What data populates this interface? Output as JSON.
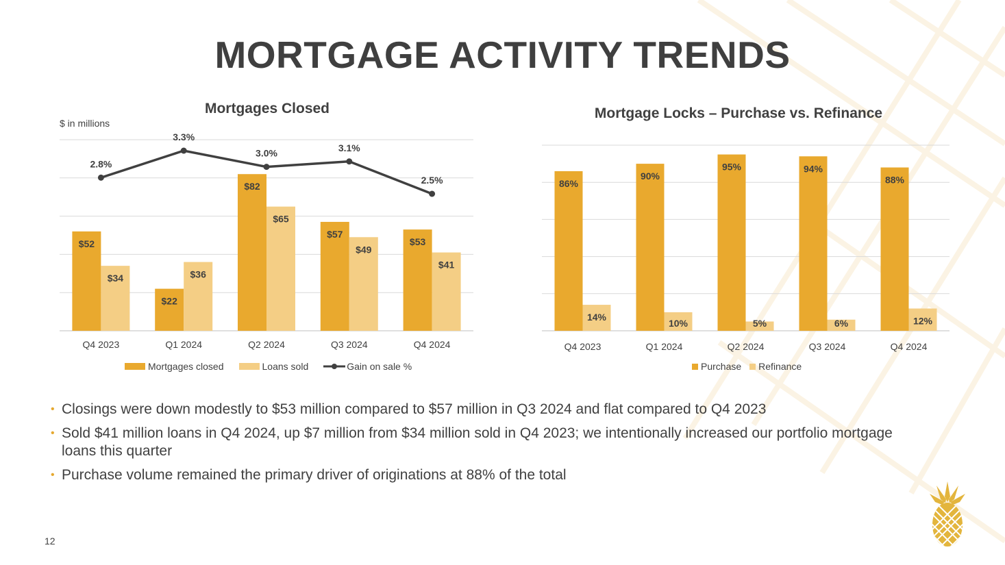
{
  "page": {
    "title": "MORTGAGE ACTIVITY TRENDS",
    "page_number": "12",
    "accent_color": "#E9A92E",
    "light_color": "#F4CE85",
    "line_color": "#404040",
    "bullets": [
      "Closings were down modestly to $53 million compared to $57 million in Q3 2024 and flat compared to Q4 2023",
      "Sold $41 million loans in Q4 2024, up $7 million from $34 million sold in Q4 2023; we intentionally increased our portfolio mortgage loans this quarter",
      "Purchase volume remained the primary driver of originations at 88% of the total"
    ],
    "logo_icon": "pineapple-icon"
  },
  "chart_data": [
    {
      "type": "bar",
      "title": "Mortgages Closed",
      "unit_label": "$ in millions",
      "categories": [
        "Q4 2023",
        "Q1 2024",
        "Q2 2024",
        "Q3 2024",
        "Q4 2024"
      ],
      "ylim": [
        0,
        100
      ],
      "series": [
        {
          "name": "Mortgages closed",
          "type": "bar",
          "color": "#E9A92E",
          "values": [
            52,
            22,
            82,
            57,
            53
          ],
          "labels": [
            "$52",
            "$22",
            "$82",
            "$57",
            "$53"
          ]
        },
        {
          "name": "Loans sold",
          "type": "bar",
          "color": "#F4CE85",
          "values": [
            34,
            36,
            65,
            49,
            41
          ],
          "labels": [
            "$34",
            "$36",
            "$65",
            "$49",
            "$41"
          ]
        },
        {
          "name": "Gain on sale %",
          "type": "line",
          "color": "#404040",
          "values": [
            2.8,
            3.3,
            3.0,
            3.1,
            2.5
          ],
          "labels": [
            "2.8%",
            "3.3%",
            "3.0%",
            "3.1%",
            "2.5%"
          ],
          "ylim": [
            0,
            4
          ]
        }
      ],
      "grid": true,
      "legend": "bottom"
    },
    {
      "type": "bar",
      "title": "Mortgage Locks – Purchase vs. Refinance",
      "categories": [
        "Q4 2023",
        "Q1 2024",
        "Q2 2024",
        "Q3 2024",
        "Q4 2024"
      ],
      "ylim": [
        0,
        100
      ],
      "series": [
        {
          "name": "Purchase",
          "color": "#E9A92E",
          "values": [
            86,
            90,
            95,
            94,
            88
          ],
          "labels": [
            "86%",
            "90%",
            "95%",
            "94%",
            "88%"
          ]
        },
        {
          "name": "Refinance",
          "color": "#F4CE85",
          "values": [
            14,
            10,
            5,
            6,
            12
          ],
          "labels": [
            "14%",
            "10%",
            "5%",
            "6%",
            "12%"
          ]
        }
      ],
      "grid": true,
      "legend": "bottom"
    }
  ]
}
